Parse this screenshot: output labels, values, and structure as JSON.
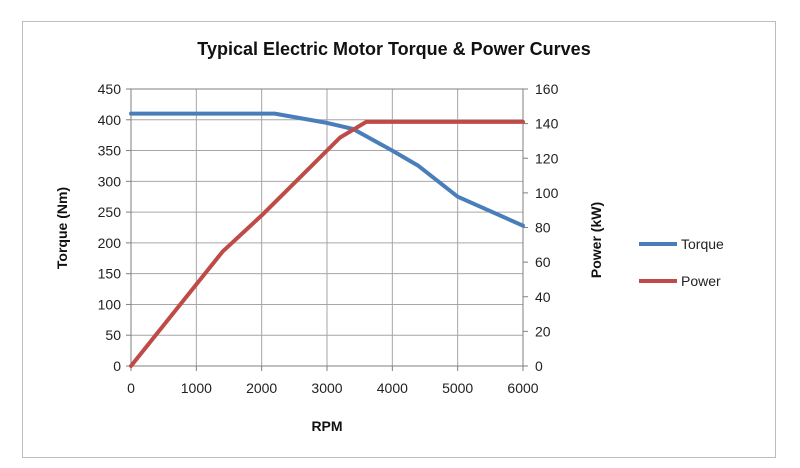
{
  "chart_data": {
    "type": "line",
    "title": "Typical Electric Motor Torque & Power Curves",
    "xlabel": "RPM",
    "ylabel": "Torque (Nm)",
    "y2label": "Power (kW)",
    "xlim": [
      0,
      6000
    ],
    "ylim": [
      0,
      450
    ],
    "y2lim": [
      0,
      160
    ],
    "x_ticks": [
      "0",
      "1000",
      "2000",
      "3000",
      "4000",
      "5000",
      "6000"
    ],
    "y_ticks": [
      "0",
      "50",
      "100",
      "150",
      "200",
      "250",
      "300",
      "350",
      "400",
      "450"
    ],
    "y2_ticks": [
      "0",
      "20",
      "40",
      "60",
      "80",
      "100",
      "120",
      "140",
      "160"
    ],
    "grid": true,
    "legend_position": "right",
    "series": [
      {
        "name": "Torque",
        "axis": "left",
        "color": "#4A7EBB",
        "x": [
          0,
          1000,
          2000,
          2200,
          3000,
          3400,
          4000,
          4400,
          5000,
          6000
        ],
        "y": [
          410,
          410,
          410,
          410,
          395,
          385,
          350,
          325,
          275,
          228
        ]
      },
      {
        "name": "Power",
        "axis": "right",
        "color": "#BE4B48",
        "x": [
          0,
          1400,
          2000,
          3200,
          3600,
          4000,
          5000,
          6000
        ],
        "y": [
          0,
          66,
          87,
          132,
          141,
          141,
          141,
          141
        ]
      }
    ]
  }
}
